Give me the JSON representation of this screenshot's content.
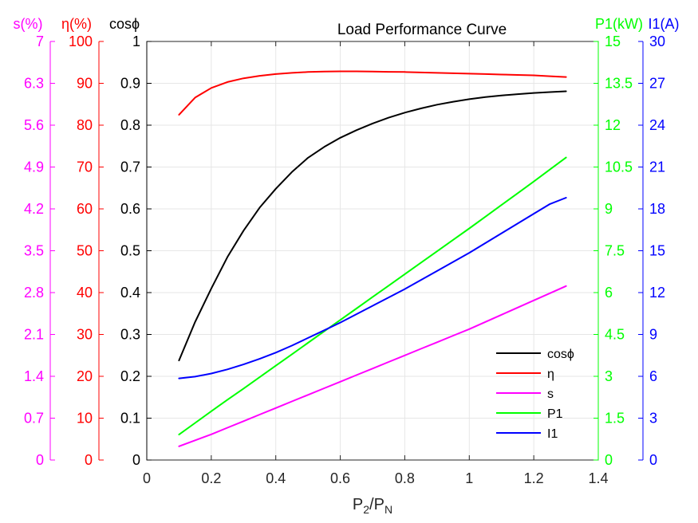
{
  "chart_data": {
    "type": "line",
    "title": "Load Performance Curve",
    "xlabel": "P2/PN",
    "xlabel_parts": {
      "base1": "P",
      "sub1": "2",
      "sep": "/P",
      "sub2": "N"
    },
    "xlim": [
      0,
      1.4
    ],
    "x_ticks": [
      0,
      0.2,
      0.4,
      0.6,
      0.8,
      1,
      1.2,
      1.4
    ],
    "x_tick_labels": [
      "0",
      "0.2",
      "0.4",
      "0.6",
      "0.8",
      "1",
      "1.2",
      "1.4"
    ],
    "grid": true,
    "legend_position": "lower-right",
    "x": [
      0.1,
      0.15,
      0.2,
      0.25,
      0.3,
      0.35,
      0.4,
      0.45,
      0.5,
      0.55,
      0.6,
      0.65,
      0.7,
      0.75,
      0.8,
      0.85,
      0.9,
      0.95,
      1.0,
      1.05,
      1.1,
      1.15,
      1.2,
      1.25,
      1.3
    ],
    "axes": [
      {
        "id": "s",
        "side": "left",
        "label": "s(%)",
        "color": "#ff00ff",
        "ylim": [
          0,
          7
        ],
        "tick_labels": [
          "0",
          "0.7",
          "1.4",
          "2.1",
          "2.8",
          "3.5",
          "4.2",
          "4.9",
          "5.6",
          "6.3",
          "7"
        ]
      },
      {
        "id": "eta",
        "side": "left",
        "label": "η(%)",
        "color": "#ff0000",
        "ylim": [
          0,
          100
        ],
        "tick_labels": [
          "0",
          "10",
          "20",
          "30",
          "40",
          "50",
          "60",
          "70",
          "80",
          "90",
          "100"
        ]
      },
      {
        "id": "cos",
        "side": "left",
        "label": "cosϕ",
        "color": "#000000",
        "ylim": [
          0,
          1
        ],
        "tick_labels": [
          "0",
          "0.1",
          "0.2",
          "0.3",
          "0.4",
          "0.5",
          "0.6",
          "0.7",
          "0.8",
          "0.9",
          "1"
        ]
      },
      {
        "id": "p1",
        "side": "right",
        "label": "P1(kW)",
        "color": "#00ff00",
        "ylim": [
          0,
          15
        ],
        "tick_labels": [
          "0",
          "1.5",
          "3",
          "4.5",
          "6",
          "7.5",
          "9",
          "10.5",
          "12",
          "13.5",
          "15"
        ]
      },
      {
        "id": "i1",
        "side": "right",
        "label": "I1(A)",
        "color": "#0000ff",
        "ylim": [
          0,
          30
        ],
        "tick_labels": [
          "0",
          "3",
          "6",
          "9",
          "12",
          "15",
          "18",
          "21",
          "24",
          "27",
          "30"
        ]
      }
    ],
    "series": [
      {
        "name": "cosϕ",
        "axis": "cos",
        "color": "#000000",
        "values": [
          0.238,
          0.33,
          0.41,
          0.485,
          0.548,
          0.603,
          0.648,
          0.688,
          0.722,
          0.748,
          0.77,
          0.788,
          0.804,
          0.818,
          0.83,
          0.84,
          0.849,
          0.856,
          0.862,
          0.867,
          0.871,
          0.874,
          0.877,
          0.879,
          0.881
        ]
      },
      {
        "name": "η",
        "axis": "eta",
        "color": "#ff0000",
        "values": [
          82.5,
          86.6,
          88.9,
          90.3,
          91.2,
          91.8,
          92.2,
          92.5,
          92.7,
          92.8,
          92.85,
          92.85,
          92.8,
          92.75,
          92.7,
          92.6,
          92.5,
          92.4,
          92.3,
          92.2,
          92.1,
          92.0,
          91.9,
          91.7,
          91.5
        ]
      },
      {
        "name": "s",
        "axis": "s",
        "color": "#ff00ff",
        "values": [
          0.23,
          0.33,
          0.43,
          0.54,
          0.65,
          0.76,
          0.87,
          0.98,
          1.09,
          1.2,
          1.31,
          1.42,
          1.53,
          1.64,
          1.75,
          1.86,
          1.97,
          2.08,
          2.19,
          2.31,
          2.43,
          2.55,
          2.67,
          2.79,
          2.91
        ]
      },
      {
        "name": "P1",
        "axis": "p1",
        "color": "#00ff00",
        "values": [
          0.91,
          1.33,
          1.75,
          2.16,
          2.56,
          2.97,
          3.38,
          3.79,
          4.2,
          4.61,
          5.02,
          5.43,
          5.84,
          6.25,
          6.66,
          7.07,
          7.48,
          7.89,
          8.3,
          8.72,
          9.14,
          9.56,
          9.98,
          10.41,
          10.84
        ]
      },
      {
        "name": "I1",
        "axis": "i1",
        "color": "#0000ff",
        "values": [
          5.85,
          5.98,
          6.2,
          6.5,
          6.85,
          7.25,
          7.7,
          8.2,
          8.75,
          9.3,
          9.85,
          10.45,
          11.05,
          11.65,
          12.25,
          12.9,
          13.55,
          14.2,
          14.85,
          15.55,
          16.25,
          16.95,
          17.65,
          18.35,
          18.8
        ]
      }
    ]
  }
}
